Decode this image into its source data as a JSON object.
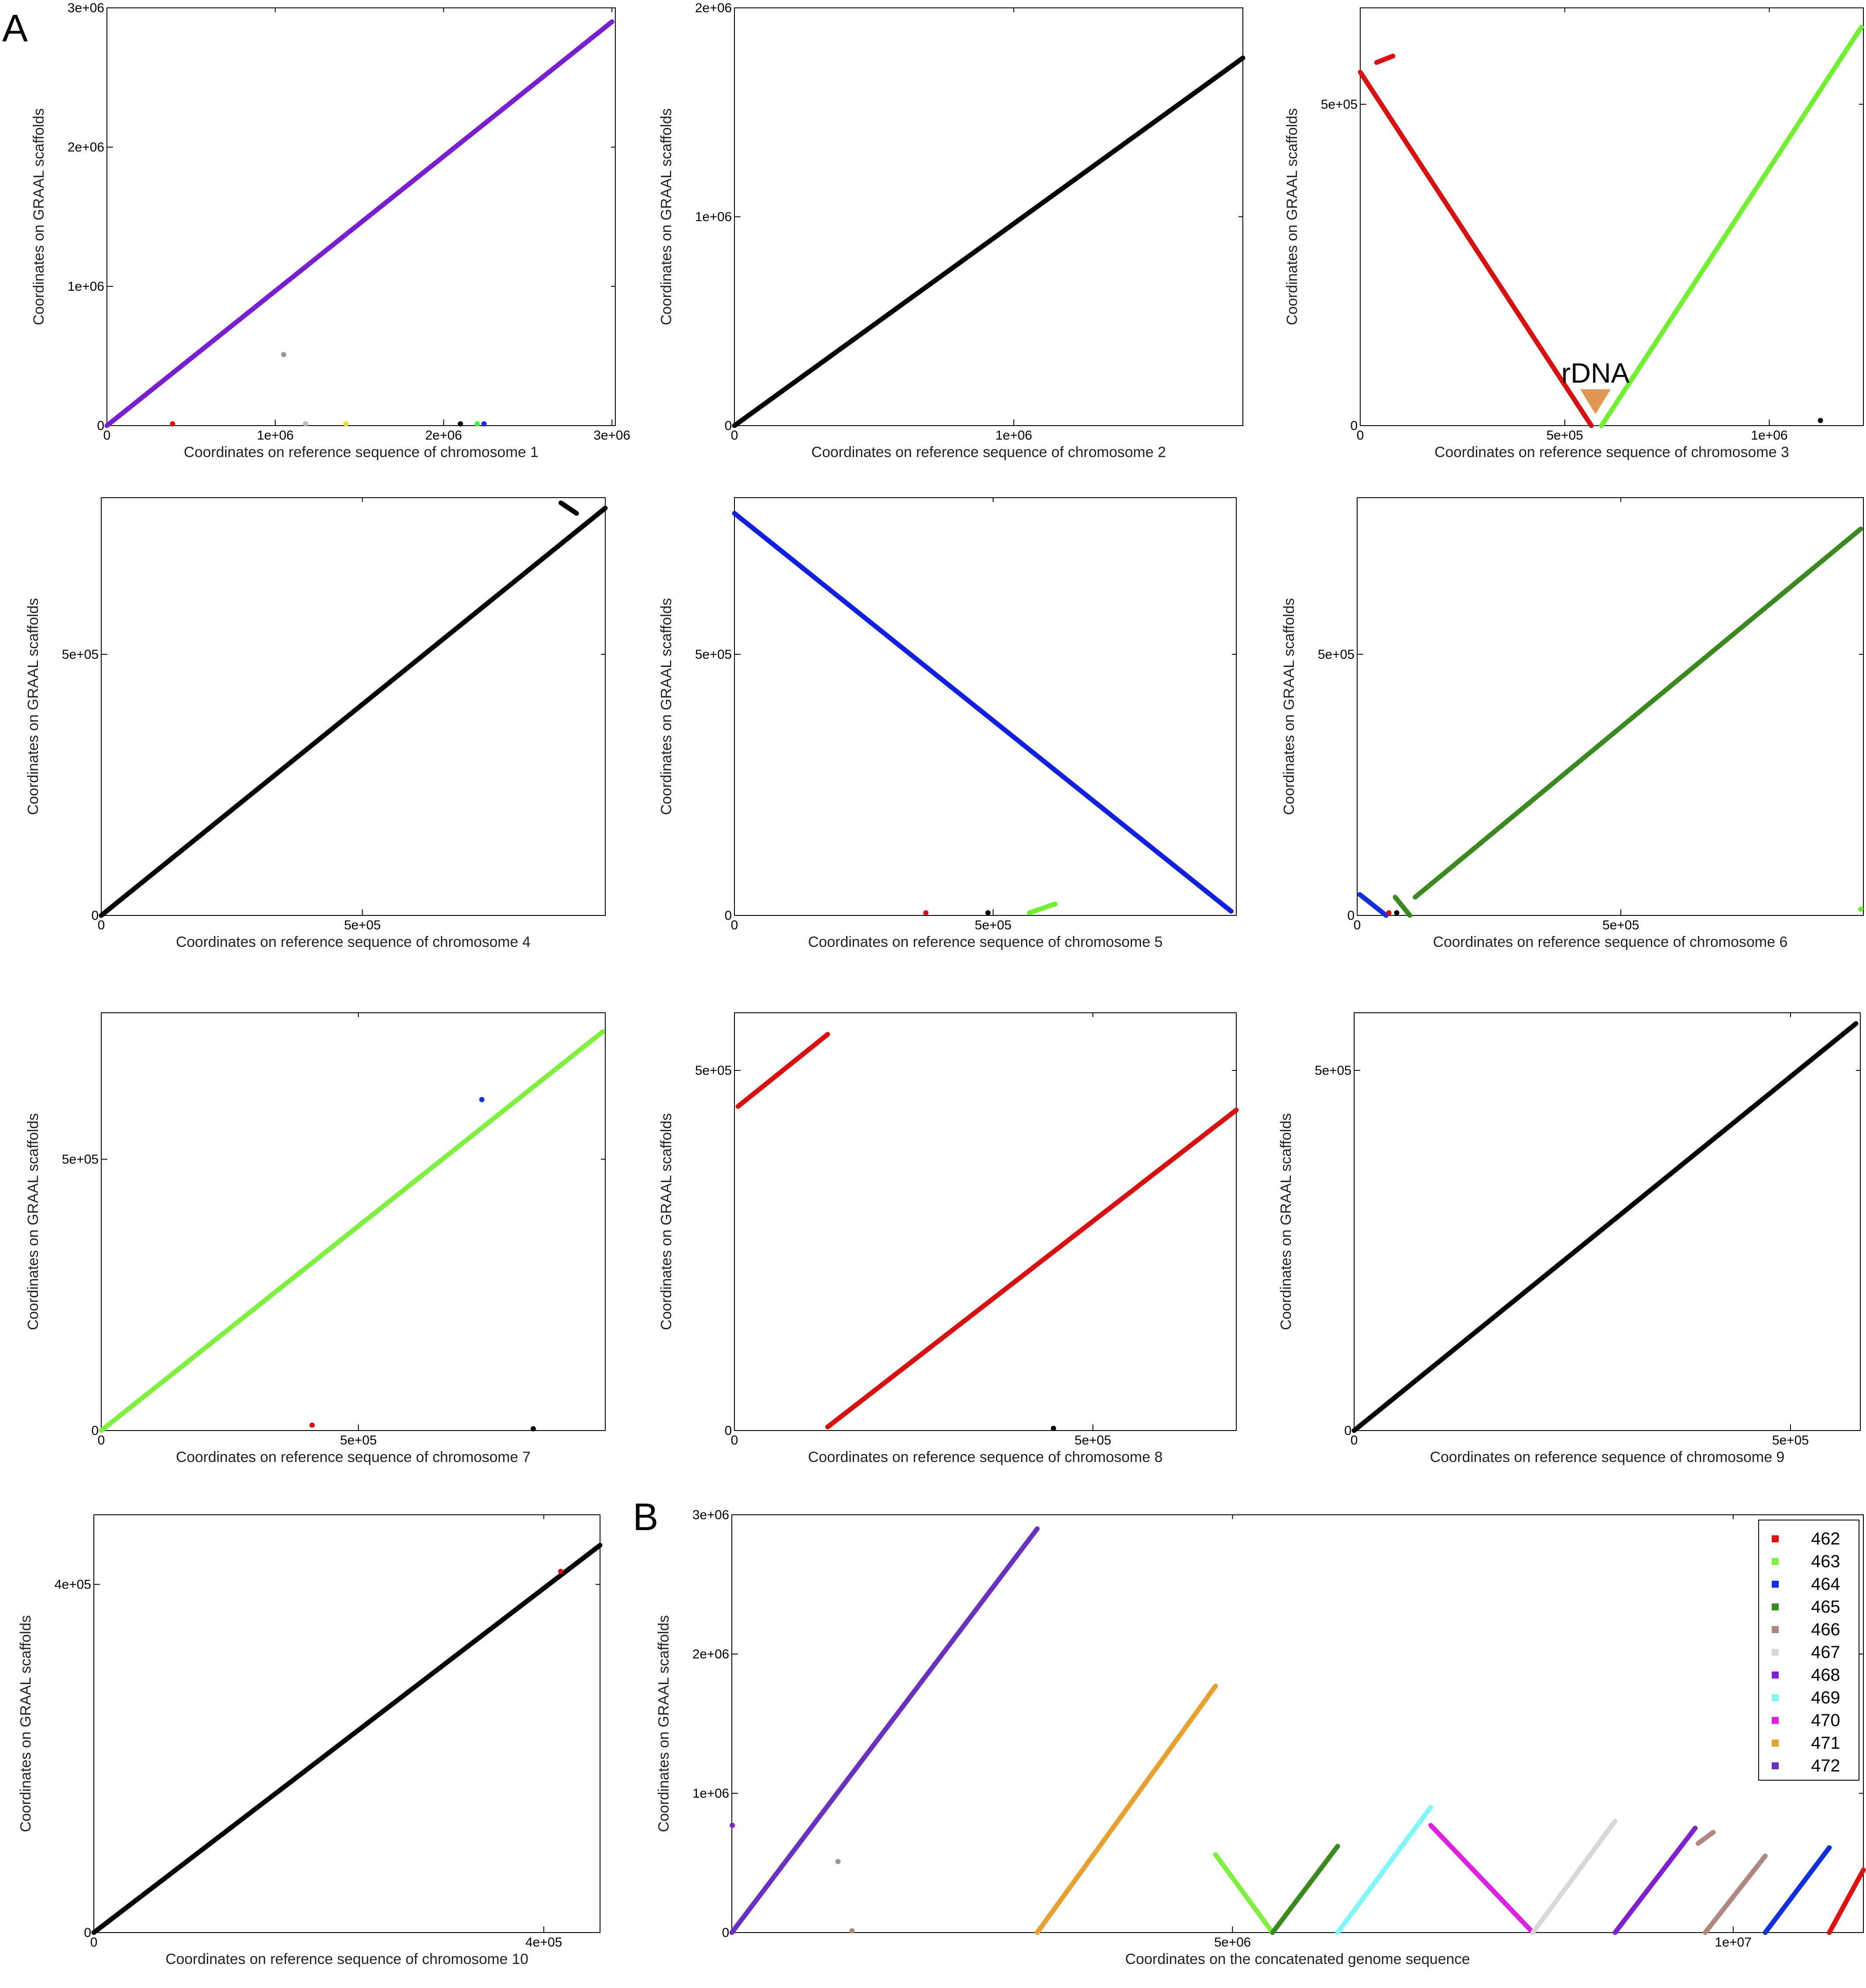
{
  "figure": {
    "panel_a": "A",
    "panel_b": "B"
  },
  "chart_data": [
    {
      "id": "chr1",
      "type": "scatter",
      "xlabel": "Coordinates on reference sequence of chromosome 1",
      "ylabel": "Coordinates on GRAAL scaffolds",
      "xlim": [
        0,
        3020000
      ],
      "ylim": [
        0,
        3000000
      ],
      "xticks": [
        {
          "v": 0,
          "label": "0"
        },
        {
          "v": 1000000,
          "label": "1e+06"
        },
        {
          "v": 2000000,
          "label": "2e+06"
        },
        {
          "v": 3000000,
          "label": "3e+06"
        }
      ],
      "yticks": [
        {
          "v": 0,
          "label": "0"
        },
        {
          "v": 1000000,
          "label": "1e+06"
        },
        {
          "v": 2000000,
          "label": "2e+06"
        },
        {
          "v": 3000000,
          "label": "3e+06"
        }
      ],
      "segments": [
        {
          "x": [
            0,
            3000000
          ],
          "y": [
            0,
            2900000
          ],
          "color": "#7a1fd0"
        }
      ],
      "points": [
        {
          "x": 1050000,
          "y": 510000,
          "color": "#999999"
        },
        {
          "x": 390000,
          "y": 5000,
          "color": "#e01010"
        },
        {
          "x": 1180000,
          "y": 5000,
          "color": "#bbbbbb"
        },
        {
          "x": 1420000,
          "y": 5000,
          "color": "#e6e030"
        },
        {
          "x": 2100000,
          "y": 5000,
          "color": "#000000"
        },
        {
          "x": 2200000,
          "y": 5000,
          "color": "#44ee44"
        },
        {
          "x": 2240000,
          "y": 5000,
          "color": "#1030e0"
        }
      ]
    },
    {
      "id": "chr2",
      "type": "scatter",
      "xlabel": "Coordinates on reference sequence of chromosome 2",
      "ylabel": "Coordinates on GRAAL scaffolds",
      "xlim": [
        0,
        1820000
      ],
      "ylim": [
        0,
        2000000
      ],
      "xticks": [
        {
          "v": 0,
          "label": "0"
        },
        {
          "v": 1000000,
          "label": "1e+06"
        }
      ],
      "yticks": [
        {
          "v": 0,
          "label": "0"
        },
        {
          "v": 1000000,
          "label": "1e+06"
        },
        {
          "v": 2000000,
          "label": "2e+06"
        }
      ],
      "segments": [
        {
          "x": [
            0,
            1820000
          ],
          "y": [
            0,
            1760000
          ],
          "color": "#000000"
        }
      ],
      "points": []
    },
    {
      "id": "chr3",
      "type": "scatter",
      "xlabel": "Coordinates on reference sequence of chromosome 3",
      "ylabel": "Coordinates on GRAAL scaffolds",
      "xlim": [
        0,
        1230000
      ],
      "ylim": [
        0,
        650000
      ],
      "xticks": [
        {
          "v": 0,
          "label": "0"
        },
        {
          "v": 500000,
          "label": "5e+05"
        },
        {
          "v": 1000000,
          "label": "1e+06"
        }
      ],
      "yticks": [
        {
          "v": 0,
          "label": "0"
        },
        {
          "v": 500000,
          "label": "5e+05"
        }
      ],
      "segments": [
        {
          "x": [
            0,
            565000
          ],
          "y": [
            550000,
            0
          ],
          "color": "#d81010"
        },
        {
          "x": [
            40000,
            80000
          ],
          "y": [
            565000,
            575000
          ],
          "color": "#d81010"
        },
        {
          "x": [
            590000,
            1225000
          ],
          "y": [
            0,
            620000
          ],
          "color": "#70f030"
        }
      ],
      "points": [
        {
          "x": 1125000,
          "y": 8000,
          "color": "#000000"
        }
      ],
      "annotation": {
        "text": "rDNA",
        "x": 575000,
        "y": 60000,
        "color": "#e09850"
      }
    },
    {
      "id": "chr4",
      "type": "scatter",
      "xlabel": "Coordinates on reference sequence of chromosome 4",
      "ylabel": "Coordinates on GRAAL scaffolds",
      "xlim": [
        0,
        965000
      ],
      "ylim": [
        0,
        800000
      ],
      "xticks": [
        {
          "v": 0,
          "label": "0"
        },
        {
          "v": 500000,
          "label": "5e+05"
        }
      ],
      "yticks": [
        {
          "v": 0,
          "label": "0"
        },
        {
          "v": 500000,
          "label": "5e+05"
        }
      ],
      "segments": [
        {
          "x": [
            0,
            965000
          ],
          "y": [
            0,
            780000
          ],
          "color": "#000000"
        },
        {
          "x": [
            880000,
            910000
          ],
          "y": [
            790000,
            770000
          ],
          "color": "#000000"
        }
      ],
      "points": []
    },
    {
      "id": "chr5",
      "type": "scatter",
      "xlabel": "Coordinates on reference sequence of chromosome 5",
      "ylabel": "Coordinates on GRAAL scaffolds",
      "xlim": [
        0,
        970000
      ],
      "ylim": [
        0,
        800000
      ],
      "xticks": [
        {
          "v": 0,
          "label": "0"
        },
        {
          "v": 500000,
          "label": "5e+05"
        }
      ],
      "yticks": [
        {
          "v": 0,
          "label": "0"
        },
        {
          "v": 500000,
          "label": "5e+05"
        }
      ],
      "segments": [
        {
          "x": [
            0,
            960000
          ],
          "y": [
            770000,
            8000
          ],
          "color": "#1020e0"
        },
        {
          "x": [
            570000,
            620000
          ],
          "y": [
            5000,
            22000
          ],
          "color": "#70f030"
        }
      ],
      "points": [
        {
          "x": 370000,
          "y": 5000,
          "color": "#d81010"
        },
        {
          "x": 490000,
          "y": 5000,
          "color": "#000000"
        }
      ]
    },
    {
      "id": "chr6",
      "type": "scatter",
      "xlabel": "Coordinates on reference sequence of chromosome 6",
      "ylabel": "Coordinates on GRAAL scaffolds",
      "xlim": [
        0,
        960000
      ],
      "ylim": [
        0,
        800000
      ],
      "xticks": [
        {
          "v": 0,
          "label": "0"
        },
        {
          "v": 500000,
          "label": "5e+05"
        }
      ],
      "yticks": [
        {
          "v": 0,
          "label": "0"
        },
        {
          "v": 500000,
          "label": "5e+05"
        }
      ],
      "segments": [
        {
          "x": [
            110000,
            955000
          ],
          "y": [
            35000,
            740000
          ],
          "color": "#3a8a20"
        },
        {
          "x": [
            72000,
            100000
          ],
          "y": [
            35000,
            0
          ],
          "color": "#3a8a20"
        },
        {
          "x": [
            5000,
            55000
          ],
          "y": [
            40000,
            0
          ],
          "color": "#1030e0"
        }
      ],
      "points": [
        {
          "x": 60000,
          "y": 5000,
          "color": "#d81010"
        },
        {
          "x": 75000,
          "y": 5000,
          "color": "#000000"
        },
        {
          "x": 955000,
          "y": 12000,
          "color": "#70f030"
        }
      ]
    },
    {
      "id": "chr7",
      "type": "scatter",
      "xlabel": "Coordinates on reference sequence of chromosome 7",
      "ylabel": "Coordinates on GRAAL scaffolds",
      "xlim": [
        0,
        980000
      ],
      "ylim": [
        0,
        770000
      ],
      "xticks": [
        {
          "v": 0,
          "label": "0"
        },
        {
          "v": 500000,
          "label": "5e+05"
        }
      ],
      "yticks": [
        {
          "v": 0,
          "label": "0"
        },
        {
          "v": 500000,
          "label": "5e+05"
        }
      ],
      "segments": [
        {
          "x": [
            0,
            975000
          ],
          "y": [
            0,
            735000
          ],
          "color": "#80f040"
        }
      ],
      "points": [
        {
          "x": 740000,
          "y": 610000,
          "color": "#1030e0"
        },
        {
          "x": 410000,
          "y": 10000,
          "color": "#d81010"
        },
        {
          "x": 840000,
          "y": 3000,
          "color": "#000000"
        }
      ]
    },
    {
      "id": "chr8",
      "type": "scatter",
      "xlabel": "Coordinates on reference sequence of chromosome 8",
      "ylabel": "Coordinates on GRAAL scaffolds",
      "xlim": [
        0,
        700000
      ],
      "ylim": [
        0,
        580000
      ],
      "xticks": [
        {
          "v": 0,
          "label": "0"
        },
        {
          "v": 500000,
          "label": "5e+05"
        }
      ],
      "yticks": [
        {
          "v": 0,
          "label": "0"
        },
        {
          "v": 500000,
          "label": "5e+05"
        }
      ],
      "segments": [
        {
          "x": [
            5000,
            130000
          ],
          "y": [
            450000,
            550000
          ],
          "color": "#d81010"
        },
        {
          "x": [
            130000,
            700000
          ],
          "y": [
            5000,
            445000
          ],
          "color": "#d81010"
        }
      ],
      "points": [
        {
          "x": 445000,
          "y": 3000,
          "color": "#000000"
        }
      ]
    },
    {
      "id": "chr9",
      "type": "scatter",
      "xlabel": "Coordinates on reference sequence of chromosome 9",
      "ylabel": "Coordinates on GRAAL scaffolds",
      "xlim": [
        0,
        580000
      ],
      "ylim": [
        0,
        580000
      ],
      "xticks": [
        {
          "v": 0,
          "label": "0"
        },
        {
          "v": 500000,
          "label": "5e+05"
        }
      ],
      "yticks": [
        {
          "v": 0,
          "label": "0"
        },
        {
          "v": 500000,
          "label": "5e+05"
        }
      ],
      "segments": [
        {
          "x": [
            0,
            575000
          ],
          "y": [
            0,
            565000
          ],
          "color": "#000000"
        }
      ],
      "points": []
    },
    {
      "id": "chr10",
      "type": "scatter",
      "xlabel": "Coordinates on reference sequence of chromosome 10",
      "ylabel": "Coordinates on GRAAL scaffolds",
      "xlim": [
        0,
        450000
      ],
      "ylim": [
        0,
        480000
      ],
      "xticks": [
        {
          "v": 0,
          "label": "0"
        },
        {
          "v": 400000,
          "label": "4e+05"
        }
      ],
      "yticks": [
        {
          "v": 0,
          "label": "0"
        },
        {
          "v": 400000,
          "label": "4e+05"
        }
      ],
      "segments": [
        {
          "x": [
            0,
            450000
          ],
          "y": [
            0,
            445000
          ],
          "color": "#000000"
        }
      ],
      "points": [
        {
          "x": 415000,
          "y": 415000,
          "color": "#d81010"
        }
      ]
    },
    {
      "id": "genome",
      "type": "scatter",
      "xlabel": "Coordinates on the concatenated genome sequence",
      "ylabel": "Coordinates on GRAAL scaffolds",
      "xlim": [
        0,
        11300000
      ],
      "ylim": [
        0,
        3000000
      ],
      "xticks": [
        {
          "v": 5000000,
          "label": "5e+06"
        },
        {
          "v": 10000000,
          "label": "1e+07"
        }
      ],
      "yticks": [
        {
          "v": 0,
          "label": "0"
        },
        {
          "v": 1000000,
          "label": "1e+06"
        },
        {
          "v": 2000000,
          "label": "2e+06"
        },
        {
          "v": 3000000,
          "label": "3e+06"
        }
      ],
      "legend": {
        "position": "top-right",
        "entries": [
          {
            "label": "462",
            "color": "#e01010"
          },
          {
            "label": "463",
            "color": "#80f040"
          },
          {
            "label": "464",
            "color": "#1030e0"
          },
          {
            "label": "465",
            "color": "#3a8a20"
          },
          {
            "label": "466",
            "color": "#b08880"
          },
          {
            "label": "467",
            "color": "#d8d8d8"
          },
          {
            "label": "468",
            "color": "#8020d0"
          },
          {
            "label": "469",
            "color": "#80f8f8"
          },
          {
            "label": "470",
            "color": "#e020e0"
          },
          {
            "label": "471",
            "color": "#e8a030"
          },
          {
            "label": "472",
            "color": "#6a30c0"
          }
        ]
      },
      "segments": [
        {
          "x": [
            0,
            3050000
          ],
          "y": [
            0,
            2900000
          ],
          "color": "#6a30c0"
        },
        {
          "x": [
            3050000,
            4830000
          ],
          "y": [
            0,
            1770000
          ],
          "color": "#e8a030"
        },
        {
          "x": [
            4830000,
            5400000
          ],
          "y": [
            560000,
            0
          ],
          "color": "#80f040"
        },
        {
          "x": [
            5400000,
            6050000
          ],
          "y": [
            0,
            620000
          ],
          "color": "#3a8a20"
        },
        {
          "x": [
            6050000,
            6980000
          ],
          "y": [
            0,
            900000
          ],
          "color": "#80f8f8"
        },
        {
          "x": [
            6980000,
            8000000
          ],
          "y": [
            770000,
            0
          ],
          "color": "#e020e0"
        },
        {
          "x": [
            8000000,
            8820000
          ],
          "y": [
            0,
            800000
          ],
          "color": "#d8d8d8"
        },
        {
          "x": [
            8820000,
            9620000
          ],
          "y": [
            0,
            750000
          ],
          "color": "#8020d0"
        },
        {
          "x": [
            9650000,
            9800000
          ],
          "y": [
            640000,
            720000
          ],
          "color": "#b08880"
        },
        {
          "x": [
            9720000,
            10320000
          ],
          "y": [
            0,
            550000
          ],
          "color": "#b08880"
        },
        {
          "x": [
            10320000,
            10960000
          ],
          "y": [
            0,
            610000
          ],
          "color": "#1030e0"
        },
        {
          "x": [
            10960000,
            11300000
          ],
          "y": [
            0,
            450000
          ],
          "color": "#e01010"
        }
      ],
      "points": [
        {
          "x": 1060000,
          "y": 510000,
          "color": "#999999"
        },
        {
          "x": 1200000,
          "y": 5000,
          "color": "#b08880"
        },
        {
          "x": 5000,
          "y": 770000,
          "color": "#8020d0"
        }
      ]
    }
  ]
}
